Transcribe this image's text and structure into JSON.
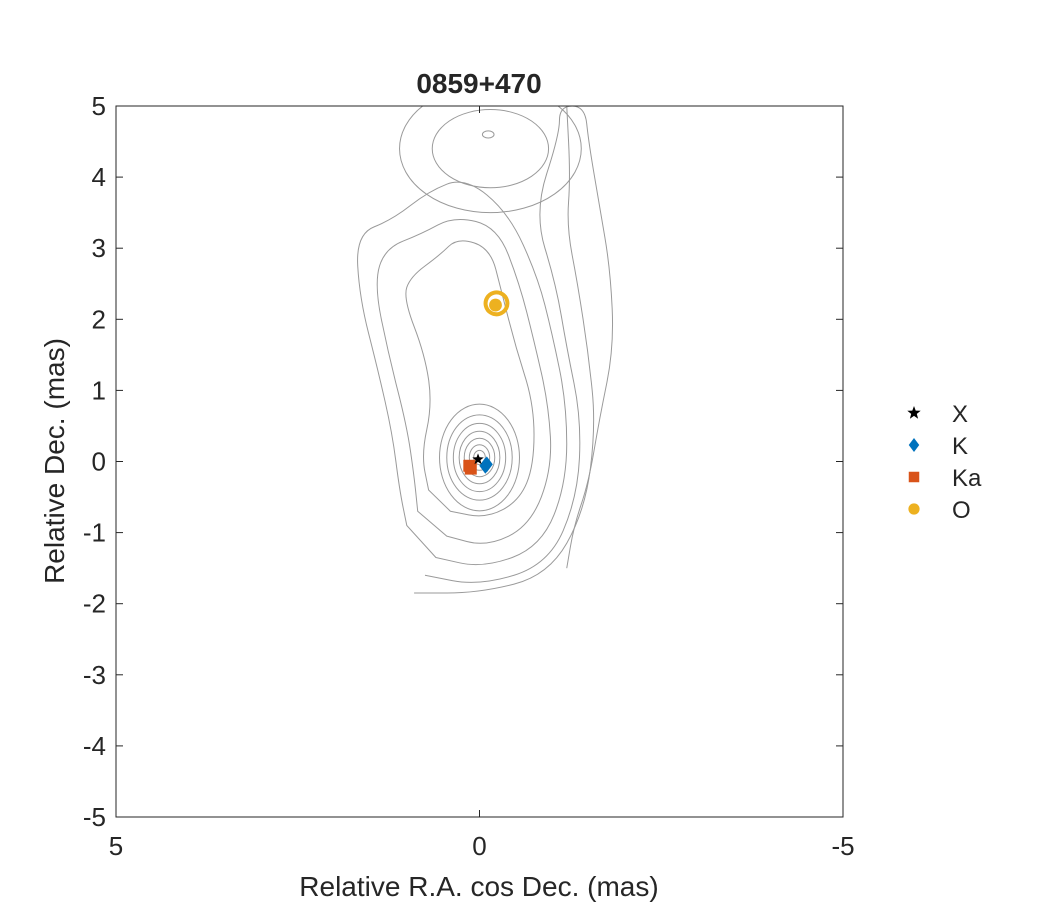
{
  "chart_data": {
    "type": "scatter",
    "title": "0859+470",
    "xlabel": "Relative R.A. cos Dec. (mas)",
    "ylabel": "Relative Dec. (mas)",
    "xlim": [
      5,
      -5
    ],
    "ylim": [
      -5,
      5
    ],
    "x_reversed": true,
    "x_ticks": [
      5,
      0,
      -5
    ],
    "x_tick_labels": [
      "5",
      "0",
      "-5"
    ],
    "y_ticks": [
      5,
      4,
      3,
      2,
      1,
      0,
      -1,
      -2,
      -3,
      -4,
      -5
    ],
    "y_tick_labels": [
      "5",
      "4",
      "3",
      "2",
      "1",
      "0",
      "-1",
      "-2",
      "-3",
      "-4",
      "-5"
    ],
    "grid": false,
    "legend_position": "outside-right",
    "background_contours": {
      "color": "#9a9a9a",
      "core_center": [
        0.0,
        0.0
      ],
      "core_rings": [
        {
          "rx": 0.08,
          "ry": 0.1
        },
        {
          "rx": 0.14,
          "ry": 0.18
        },
        {
          "rx": 0.21,
          "ry": 0.27
        },
        {
          "rx": 0.28,
          "ry": 0.37
        },
        {
          "rx": 0.36,
          "ry": 0.48
        },
        {
          "rx": 0.45,
          "ry": 0.6
        },
        {
          "rx": 0.55,
          "ry": 0.75
        }
      ],
      "outer_levels": [
        [
          [
            0.4,
            -0.7
          ],
          [
            -0.1,
            -0.8
          ],
          [
            -0.55,
            -0.55
          ],
          [
            -0.75,
            -0.05
          ],
          [
            -0.75,
            0.8
          ],
          [
            -0.5,
            1.6
          ],
          [
            -0.3,
            2.4
          ],
          [
            -0.15,
            3.0
          ],
          [
            0.3,
            3.15
          ],
          [
            0.55,
            2.9
          ],
          [
            0.95,
            2.6
          ],
          [
            1.05,
            2.3
          ],
          [
            0.75,
            1.5
          ],
          [
            0.65,
            0.8
          ],
          [
            0.8,
            0.1
          ],
          [
            0.7,
            -0.4
          ]
        ],
        [
          [
            0.45,
            -1.05
          ],
          [
            -0.1,
            -1.2
          ],
          [
            -0.7,
            -0.9
          ],
          [
            -1.0,
            -0.1
          ],
          [
            -0.95,
            0.8
          ],
          [
            -0.75,
            1.7
          ],
          [
            -0.55,
            2.5
          ],
          [
            -0.25,
            3.3
          ],
          [
            0.35,
            3.45
          ],
          [
            0.8,
            3.2
          ],
          [
            1.3,
            3.0
          ],
          [
            1.45,
            2.5
          ],
          [
            1.25,
            1.5
          ],
          [
            1.0,
            0.5
          ],
          [
            0.9,
            -0.2
          ],
          [
            0.85,
            -0.7
          ]
        ],
        [
          [
            0.6,
            -1.35
          ],
          [
            -0.05,
            -1.5
          ],
          [
            -0.85,
            -1.2
          ],
          [
            -1.2,
            -0.3
          ],
          [
            -1.2,
            0.8
          ],
          [
            -1.0,
            1.8
          ],
          [
            -0.8,
            2.6
          ],
          [
            -0.4,
            3.5
          ],
          [
            0.2,
            4.0
          ],
          [
            0.7,
            3.8
          ],
          [
            1.2,
            3.4
          ],
          [
            1.7,
            3.2
          ],
          [
            1.65,
            2.3
          ],
          [
            1.4,
            1.3
          ],
          [
            1.2,
            0.4
          ],
          [
            1.1,
            -0.4
          ],
          [
            1.0,
            -0.9
          ]
        ],
        [
          [
            0.75,
            -1.6
          ],
          [
            0.0,
            -1.75
          ],
          [
            -0.95,
            -1.45
          ],
          [
            -1.35,
            -0.5
          ],
          [
            -1.4,
            0.6
          ],
          [
            -1.2,
            1.6
          ],
          [
            -1.05,
            2.5
          ],
          [
            -0.75,
            3.5
          ],
          [
            -1.1,
            4.6
          ],
          [
            -1.1,
            5.0
          ],
          [
            -1.45,
            5.0
          ],
          [
            -1.5,
            4.5
          ],
          [
            -1.65,
            3.6
          ],
          [
            -1.8,
            2.7
          ],
          [
            -1.85,
            1.6
          ],
          [
            -1.65,
            0.6
          ],
          [
            -1.5,
            -0.3
          ],
          [
            -1.3,
            -0.9
          ],
          [
            -1.2,
            -1.5
          ]
        ],
        [
          [
            0.9,
            -1.85
          ],
          [
            0.0,
            -1.85
          ],
          [
            -0.95,
            -1.6
          ],
          [
            -1.45,
            -0.7
          ],
          [
            -1.6,
            0.5
          ],
          [
            -1.5,
            1.5
          ],
          [
            -1.35,
            2.5
          ],
          [
            -1.2,
            3.3
          ],
          [
            -1.25,
            4.0
          ],
          [
            -1.2,
            5.0
          ]
        ]
      ],
      "upper_lobe": {
        "center": [
          -0.15,
          4.4
        ],
        "rx": 0.8,
        "ry": 0.55
      },
      "upper_lobe_outer": {
        "center": [
          -0.15,
          4.4
        ],
        "rx": 1.25,
        "ry": 0.9
      },
      "upper_lobe_small": {
        "center": [
          -0.12,
          4.6
        ],
        "rx": 0.08,
        "ry": 0.05
      }
    },
    "series": [
      {
        "name": "X",
        "marker": "star",
        "color": "#000000",
        "points": [
          {
            "x": 0.02,
            "y": 0.03
          }
        ]
      },
      {
        "name": "K",
        "marker": "diamond",
        "color": "#0072BD",
        "points": [
          {
            "x": -0.1,
            "y": -0.04
          },
          {
            "x": -0.08,
            "y": -0.06
          }
        ]
      },
      {
        "name": "Ka",
        "marker": "square",
        "color": "#D95319",
        "points": [
          {
            "x": 0.12,
            "y": -0.1
          },
          {
            "x": 0.14,
            "y": -0.06
          }
        ]
      },
      {
        "name": "O",
        "marker": "circle",
        "color": "#EDB120",
        "points": [
          {
            "x": -0.22,
            "y": 2.2
          }
        ],
        "ring": {
          "rx": 0.3,
          "ry": 0.22
        }
      }
    ]
  }
}
